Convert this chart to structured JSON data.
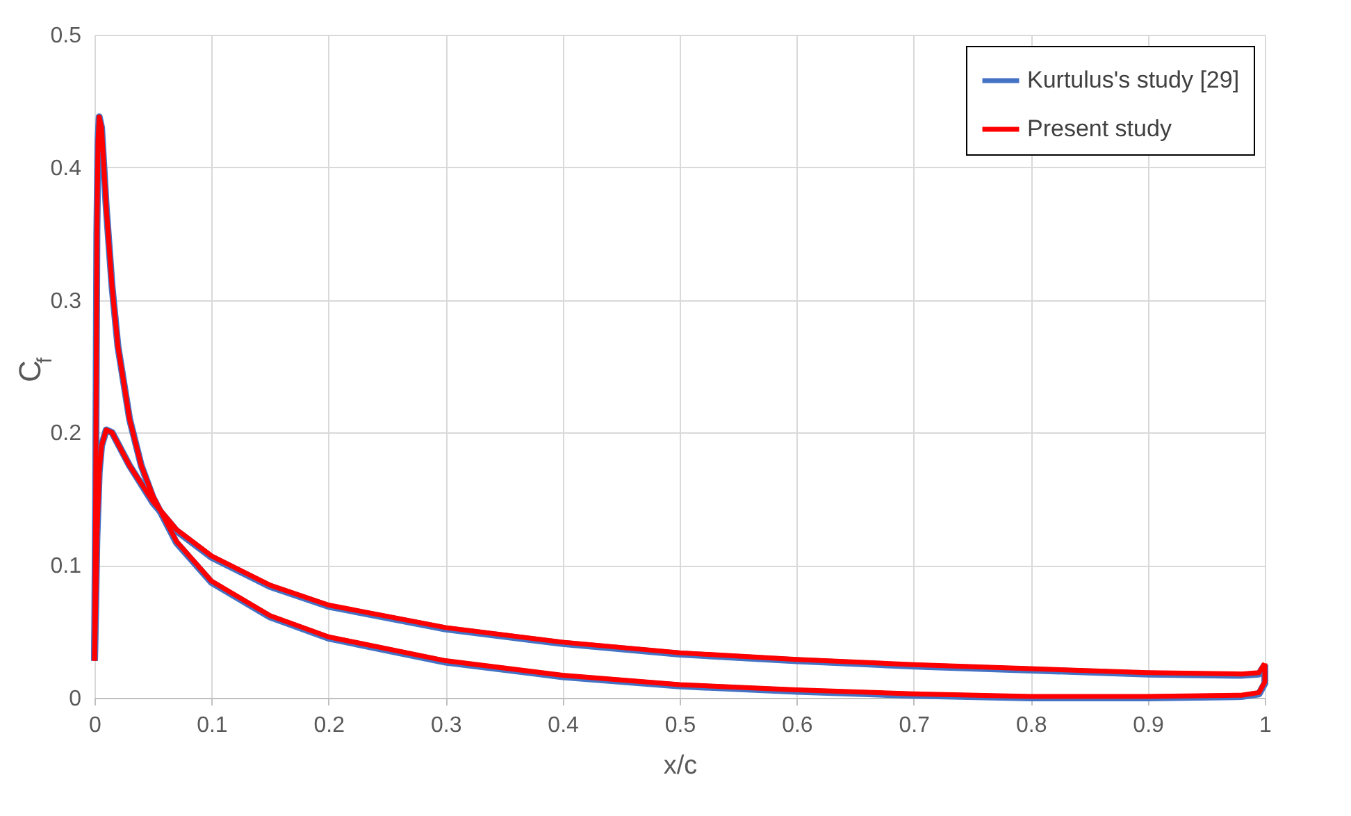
{
  "chart_data": {
    "type": "line",
    "xlabel": "x/c",
    "ylabel": "C$_{f}$",
    "series": [
      {
        "name": "Kurtulus's study [29]",
        "color": "#4472c4",
        "x": [
          0,
          0.001,
          0.002,
          0.004,
          0.006,
          0.01,
          0.015,
          0.03,
          0.05,
          0.07,
          0.1,
          0.15,
          0.2,
          0.3,
          0.4,
          0.5,
          0.6,
          0.7,
          0.8,
          0.9,
          0.98,
          0.995,
          1.0
        ],
        "values": [
          0.028,
          0.07,
          0.12,
          0.17,
          0.19,
          0.202,
          0.2,
          0.175,
          0.147,
          0.126,
          0.106,
          0.084,
          0.069,
          0.052,
          0.041,
          0.033,
          0.028,
          0.024,
          0.021,
          0.018,
          0.017,
          0.018,
          0.025
        ]
      },
      {
        "color": "#4472c4",
        "x": [
          0,
          0.001,
          0.002,
          0.003,
          0.004,
          0.006,
          0.01,
          0.015,
          0.02,
          0.03,
          0.04,
          0.05,
          0.07,
          0.1,
          0.15,
          0.2,
          0.3,
          0.4,
          0.5,
          0.6,
          0.7,
          0.8,
          0.9,
          0.98,
          0.995,
          1.0,
          1.0
        ],
        "values": [
          0.028,
          0.15,
          0.35,
          0.42,
          0.438,
          0.43,
          0.37,
          0.31,
          0.265,
          0.21,
          0.175,
          0.151,
          0.117,
          0.087,
          0.061,
          0.045,
          0.027,
          0.016,
          0.009,
          0.005,
          0.002,
          0.0,
          0.0,
          0.001,
          0.003,
          0.011,
          0.025
        ]
      },
      {
        "name": "Present study",
        "color": "#ff0000",
        "x": [
          0,
          0.001,
          0.002,
          0.004,
          0.006,
          0.01,
          0.015,
          0.03,
          0.05,
          0.07,
          0.1,
          0.15,
          0.2,
          0.3,
          0.4,
          0.5,
          0.6,
          0.7,
          0.8,
          0.9,
          0.98,
          0.995,
          1.0
        ],
        "values": [
          0.028,
          0.07,
          0.12,
          0.17,
          0.19,
          0.202,
          0.2,
          0.175,
          0.148,
          0.127,
          0.107,
          0.085,
          0.07,
          0.053,
          0.042,
          0.034,
          0.029,
          0.025,
          0.022,
          0.019,
          0.018,
          0.019,
          0.026
        ]
      },
      {
        "color": "#ff0000",
        "x": [
          0,
          0.001,
          0.002,
          0.003,
          0.004,
          0.006,
          0.01,
          0.015,
          0.02,
          0.03,
          0.04,
          0.05,
          0.07,
          0.1,
          0.15,
          0.2,
          0.3,
          0.4,
          0.5,
          0.6,
          0.7,
          0.8,
          0.9,
          0.98,
          0.995,
          1.0,
          1.0
        ],
        "values": [
          0.028,
          0.15,
          0.35,
          0.42,
          0.438,
          0.43,
          0.37,
          0.31,
          0.265,
          0.21,
          0.175,
          0.152,
          0.118,
          0.088,
          0.062,
          0.046,
          0.028,
          0.017,
          0.01,
          0.006,
          0.003,
          0.001,
          0.001,
          0.002,
          0.004,
          0.012,
          0.026
        ]
      }
    ],
    "xlim": [
      0,
      1
    ],
    "xticks": [
      0,
      0.1,
      0.2,
      0.3,
      0.4,
      0.5,
      0.6,
      0.7,
      0.8,
      0.9,
      1
    ],
    "ylim": [
      0,
      0.5
    ],
    "yticks": [
      0,
      0.1,
      0.2,
      0.3,
      0.4,
      0.5
    ],
    "grid": true,
    "legend": "top right",
    "marker": "none",
    "line_style": "solid"
  }
}
